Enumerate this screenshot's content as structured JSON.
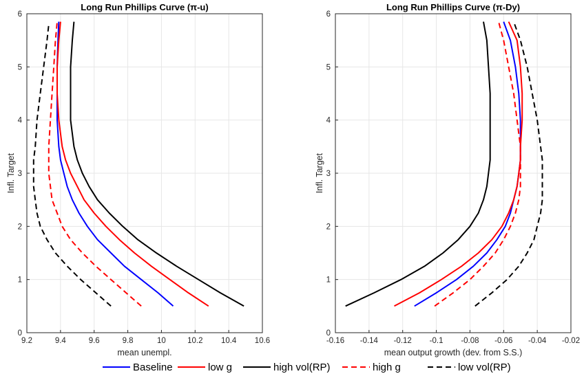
{
  "chart_data": [
    {
      "type": "line",
      "title": "Long Run Phillips Curve (π-u)",
      "xlabel": "mean unempl.",
      "ylabel": "Infl. Target",
      "xlim": [
        9.2,
        10.6
      ],
      "ylim": [
        0,
        6
      ],
      "xticks": [
        "9.2",
        "9.4",
        "9.6",
        "9.8",
        "10",
        "10.2",
        "10.4",
        "10.6"
      ],
      "yticks": [
        "0",
        "1",
        "2",
        "3",
        "4",
        "5",
        "6"
      ],
      "grid": true,
      "series": [
        {
          "name": "Baseline",
          "color": "#0000ff",
          "dash": "solid",
          "x": [
            10.07,
            9.98,
            9.88,
            9.78,
            9.7,
            9.62,
            9.56,
            9.51,
            9.47,
            9.44,
            9.42,
            9.4,
            9.39,
            9.38,
            9.38,
            9.38,
            9.385,
            9.39
          ],
          "y": [
            0.5,
            0.75,
            1.0,
            1.25,
            1.5,
            1.75,
            2.0,
            2.25,
            2.5,
            2.75,
            3.0,
            3.25,
            3.5,
            4.0,
            4.5,
            5.0,
            5.5,
            5.85
          ]
        },
        {
          "name": "low g",
          "color": "#ff0000",
          "dash": "solid",
          "x": [
            10.28,
            10.16,
            10.05,
            9.94,
            9.84,
            9.75,
            9.67,
            9.6,
            9.54,
            9.5,
            9.46,
            9.43,
            9.41,
            9.39,
            9.38,
            9.38,
            9.39,
            9.4
          ],
          "y": [
            0.5,
            0.75,
            1.0,
            1.25,
            1.5,
            1.75,
            2.0,
            2.25,
            2.5,
            2.75,
            3.0,
            3.25,
            3.5,
            4.0,
            4.5,
            5.0,
            5.5,
            5.85
          ]
        },
        {
          "name": "high vol(RP)",
          "color": "#000000",
          "dash": "solid",
          "x": [
            10.49,
            10.35,
            10.22,
            10.09,
            9.97,
            9.86,
            9.77,
            9.69,
            9.62,
            9.57,
            9.53,
            9.5,
            9.48,
            9.46,
            9.46,
            9.46,
            9.47,
            9.48
          ],
          "y": [
            0.5,
            0.75,
            1.0,
            1.25,
            1.5,
            1.75,
            2.0,
            2.25,
            2.5,
            2.75,
            3.0,
            3.25,
            3.5,
            4.0,
            4.5,
            5.0,
            5.5,
            5.85
          ]
        },
        {
          "name": "high g",
          "color": "#ff0000",
          "dash": "dashed",
          "x": [
            9.88,
            9.79,
            9.7,
            9.61,
            9.53,
            9.46,
            9.41,
            9.38,
            9.35,
            9.34,
            9.33,
            9.33,
            9.33,
            9.34,
            9.35,
            9.36,
            9.37,
            9.38
          ],
          "y": [
            0.5,
            0.75,
            1.0,
            1.25,
            1.5,
            1.75,
            2.0,
            2.25,
            2.5,
            2.75,
            3.0,
            3.25,
            3.5,
            4.0,
            4.5,
            5.0,
            5.5,
            5.85
          ]
        },
        {
          "name": "low vol(RP)",
          "color": "#000000",
          "dash": "dashed",
          "x": [
            9.7,
            9.61,
            9.52,
            9.44,
            9.37,
            9.32,
            9.28,
            9.26,
            9.25,
            9.24,
            9.24,
            9.24,
            9.25,
            9.26,
            9.28,
            9.3,
            9.32,
            9.33
          ],
          "y": [
            0.5,
            0.75,
            1.0,
            1.25,
            1.5,
            1.75,
            2.0,
            2.25,
            2.5,
            2.75,
            3.0,
            3.25,
            3.5,
            4.0,
            4.5,
            5.0,
            5.5,
            5.8
          ]
        }
      ]
    },
    {
      "type": "line",
      "title": "Long Run Phillips Curve (π-Dy)",
      "xlabel": "mean output growth (dev. from S.S.)",
      "ylabel": "Infl. Target",
      "xlim": [
        -0.16,
        -0.02
      ],
      "ylim": [
        0,
        6
      ],
      "xticks": [
        "-0.16",
        "-0.14",
        "-0.12",
        "-0.1",
        "-0.08",
        "-0.06",
        "-0.04",
        "-0.02"
      ],
      "yticks": [
        "0",
        "1",
        "2",
        "3",
        "4",
        "5",
        "6"
      ],
      "grid": true,
      "series": [
        {
          "name": "Baseline",
          "color": "#0000ff",
          "dash": "solid",
          "x": [
            -0.113,
            -0.1,
            -0.088,
            -0.078,
            -0.07,
            -0.064,
            -0.059,
            -0.056,
            -0.054,
            -0.052,
            -0.051,
            -0.05,
            -0.05,
            -0.05,
            -0.051,
            -0.053,
            -0.056,
            -0.06
          ],
          "y": [
            0.5,
            0.75,
            1.0,
            1.25,
            1.5,
            1.75,
            2.0,
            2.25,
            2.5,
            2.75,
            3.0,
            3.25,
            3.5,
            4.0,
            4.5,
            5.0,
            5.5,
            5.85
          ]
        },
        {
          "name": "low g",
          "color": "#ff0000",
          "dash": "solid",
          "x": [
            -0.125,
            -0.11,
            -0.097,
            -0.085,
            -0.075,
            -0.067,
            -0.061,
            -0.057,
            -0.054,
            -0.052,
            -0.051,
            -0.05,
            -0.05,
            -0.049,
            -0.049,
            -0.05,
            -0.052,
            -0.057
          ],
          "y": [
            0.5,
            0.75,
            1.0,
            1.25,
            1.5,
            1.75,
            2.0,
            2.25,
            2.5,
            2.75,
            3.0,
            3.25,
            3.5,
            4.0,
            4.5,
            5.0,
            5.5,
            5.85
          ]
        },
        {
          "name": "high vol(RP)",
          "color": "#000000",
          "dash": "solid",
          "x": [
            -0.154,
            -0.137,
            -0.121,
            -0.107,
            -0.096,
            -0.087,
            -0.08,
            -0.075,
            -0.072,
            -0.07,
            -0.069,
            -0.068,
            -0.068,
            -0.068,
            -0.068,
            -0.069,
            -0.07,
            -0.072
          ],
          "y": [
            0.5,
            0.75,
            1.0,
            1.25,
            1.5,
            1.75,
            2.0,
            2.25,
            2.5,
            2.75,
            3.0,
            3.25,
            3.5,
            4.0,
            4.5,
            5.0,
            5.5,
            5.85
          ]
        },
        {
          "name": "high g",
          "color": "#ff0000",
          "dash": "dashed",
          "x": [
            -0.101,
            -0.09,
            -0.08,
            -0.072,
            -0.065,
            -0.06,
            -0.056,
            -0.053,
            -0.051,
            -0.05,
            -0.05,
            -0.05,
            -0.05,
            -0.052,
            -0.054,
            -0.057,
            -0.06,
            -0.063
          ],
          "y": [
            0.5,
            0.75,
            1.0,
            1.25,
            1.5,
            1.75,
            2.0,
            2.25,
            2.5,
            2.75,
            3.0,
            3.25,
            3.5,
            4.0,
            4.5,
            5.0,
            5.5,
            5.85
          ]
        },
        {
          "name": "low vol(RP)",
          "color": "#000000",
          "dash": "dashed",
          "x": [
            -0.077,
            -0.067,
            -0.058,
            -0.051,
            -0.046,
            -0.042,
            -0.04,
            -0.038,
            -0.037,
            -0.037,
            -0.037,
            -0.037,
            -0.038,
            -0.04,
            -0.043,
            -0.046,
            -0.05,
            -0.054
          ],
          "y": [
            0.5,
            0.75,
            1.0,
            1.25,
            1.5,
            1.75,
            2.0,
            2.25,
            2.5,
            2.75,
            3.0,
            3.25,
            3.5,
            4.0,
            4.5,
            5.0,
            5.5,
            5.85
          ]
        }
      ]
    }
  ],
  "legend": {
    "placement": "bottom",
    "items": [
      {
        "label": "Baseline",
        "color": "#0000ff",
        "dash": "solid"
      },
      {
        "label": "low g",
        "color": "#ff0000",
        "dash": "solid"
      },
      {
        "label": "high vol(RP)",
        "color": "#000000",
        "dash": "solid"
      },
      {
        "label": "high g",
        "color": "#ff0000",
        "dash": "dashed"
      },
      {
        "label": "low vol(RP)",
        "color": "#000000",
        "dash": "dashed"
      }
    ]
  }
}
